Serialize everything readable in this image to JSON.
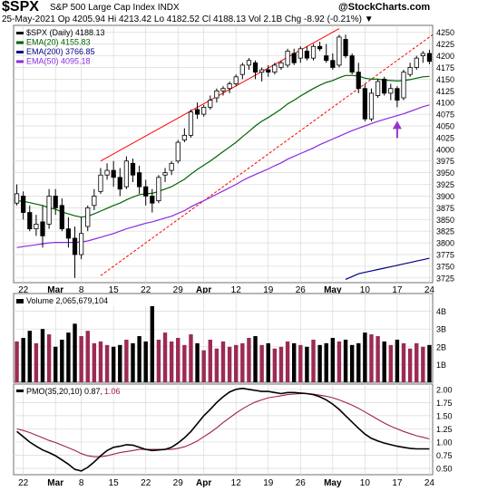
{
  "header": {
    "symbol": "$SPX",
    "description": "S&P 500 Large Cap Index  INDX",
    "logo": "@StockCharts.com",
    "quote": "25-May-2021  Op 4205.94  Hi 4213.42  Lo 4182.52  Cl 4188.13  Vol 2.1B  Chg -8.92 (-0.21%) ▼"
  },
  "colors": {
    "price_up": "#000000",
    "price_down": "#000000",
    "ema20": "#006400",
    "ema50": "#8a2be2",
    "ema200": "#000080",
    "trendline": "#ff0000",
    "volume_up": "#9c2a55",
    "volume_down": "#000000",
    "pmo": "#000000",
    "pmo_signal": "#a0204a",
    "arrow": "#9932cc"
  },
  "chart_data": [
    {
      "type": "candlestick",
      "panel": "price",
      "legend": [
        {
          "label": "$SPX (Daily) 4188.13",
          "color": "#000000"
        },
        {
          "label": "EMA(20) 4155.83",
          "color": "#006400"
        },
        {
          "label": "EMA(200) 3766.85",
          "color": "#000080"
        },
        {
          "label": "EMA(50) 4095.18",
          "color": "#8a2be2"
        }
      ],
      "ylim": [
        3715,
        4265
      ],
      "y_ticks": [
        3725,
        3750,
        3775,
        3800,
        3825,
        3850,
        3875,
        3900,
        3925,
        3950,
        3975,
        4000,
        4025,
        4050,
        4075,
        4100,
        4125,
        4150,
        4175,
        4200,
        4225,
        4250
      ],
      "x_tick_labels": [
        "22",
        "Mar",
        "8",
        "15",
        "22",
        "29",
        "Apr",
        "12",
        "19",
        "26",
        "May",
        "10",
        "17",
        "24"
      ],
      "x_tick_index": [
        1,
        6,
        10,
        15,
        20,
        25,
        29,
        34,
        39,
        44,
        49,
        54,
        59,
        64
      ],
      "ohlc": [
        [
          3885,
          3925,
          3880,
          3905
        ],
        [
          3900,
          3910,
          3850,
          3865
        ],
        [
          3865,
          3880,
          3825,
          3830
        ],
        [
          3830,
          3860,
          3815,
          3840
        ],
        [
          3845,
          3880,
          3790,
          3815
        ],
        [
          3840,
          3915,
          3830,
          3900
        ],
        [
          3900,
          3915,
          3860,
          3875
        ],
        [
          3880,
          3895,
          3825,
          3830
        ],
        [
          3830,
          3855,
          3790,
          3810
        ],
        [
          3810,
          3835,
          3725,
          3775
        ],
        [
          3775,
          3855,
          3765,
          3820
        ],
        [
          3835,
          3880,
          3825,
          3875
        ],
        [
          3880,
          3915,
          3870,
          3900
        ],
        [
          3910,
          3960,
          3905,
          3945
        ],
        [
          3945,
          3970,
          3935,
          3955
        ],
        [
          3955,
          3975,
          3920,
          3940
        ],
        [
          3940,
          3960,
          3900,
          3915
        ],
        [
          3920,
          3985,
          3915,
          3975
        ],
        [
          3970,
          3980,
          3930,
          3945
        ],
        [
          3950,
          3965,
          3905,
          3920
        ],
        [
          3920,
          3935,
          3880,
          3900
        ],
        [
          3900,
          3915,
          3865,
          3885
        ],
        [
          3890,
          3945,
          3885,
          3940
        ],
        [
          3945,
          3960,
          3930,
          3950
        ],
        [
          3955,
          3975,
          3945,
          3970
        ],
        [
          3975,
          4020,
          3970,
          4015
        ],
        [
          4020,
          4045,
          4015,
          4030
        ],
        [
          4030,
          4085,
          4025,
          4080
        ],
        [
          4085,
          4100,
          4065,
          4075
        ],
        [
          4075,
          4095,
          4070,
          4090
        ],
        [
          4090,
          4115,
          4085,
          4105
        ],
        [
          4110,
          4130,
          4100,
          4125
        ],
        [
          4125,
          4135,
          4115,
          4130
        ],
        [
          4130,
          4145,
          4120,
          4140
        ],
        [
          4140,
          4160,
          4135,
          4155
        ],
        [
          4160,
          4185,
          4150,
          4180
        ],
        [
          4180,
          4195,
          4170,
          4190
        ],
        [
          4185,
          4190,
          4150,
          4165
        ],
        [
          4165,
          4175,
          4145,
          4170
        ],
        [
          4170,
          4180,
          4155,
          4165
        ],
        [
          4165,
          4185,
          4160,
          4180
        ],
        [
          4175,
          4190,
          4170,
          4185
        ],
        [
          4180,
          4215,
          4175,
          4210
        ],
        [
          4205,
          4215,
          4180,
          4185
        ],
        [
          4195,
          4220,
          4185,
          4215
        ],
        [
          4210,
          4220,
          4190,
          4195
        ],
        [
          4195,
          4225,
          4190,
          4220
        ],
        [
          4220,
          4230,
          4210,
          4215
        ],
        [
          4200,
          4225,
          4185,
          4190
        ],
        [
          4190,
          4205,
          4170,
          4175
        ],
        [
          4180,
          4245,
          4175,
          4240
        ],
        [
          4235,
          4245,
          4195,
          4200
        ],
        [
          4200,
          4205,
          4160,
          4165
        ],
        [
          4165,
          4185,
          4120,
          4130
        ],
        [
          4130,
          4140,
          4060,
          4065
        ],
        [
          4065,
          4130,
          4060,
          4120
        ],
        [
          4115,
          4150,
          4110,
          4145
        ],
        [
          4150,
          4155,
          4115,
          4120
        ],
        [
          4120,
          4140,
          4105,
          4130
        ],
        [
          4130,
          4135,
          4090,
          4105
        ],
        [
          4110,
          4170,
          4105,
          4165
        ],
        [
          4160,
          4185,
          4155,
          4175
        ],
        [
          4175,
          4200,
          4170,
          4195
        ],
        [
          4200,
          4210,
          4185,
          4205
        ],
        [
          4205,
          4213,
          4182,
          4188
        ]
      ],
      "ema20": [
        3890,
        3889,
        3886,
        3883,
        3880,
        3875,
        3872,
        3866,
        3862,
        3858,
        3855,
        3857,
        3862,
        3868,
        3874,
        3880,
        3885,
        3892,
        3898,
        3903,
        3905,
        3906,
        3910,
        3915,
        3920,
        3928,
        3936,
        3947,
        3957,
        3966,
        3975,
        3985,
        3995,
        4005,
        4015,
        4027,
        4038,
        4050,
        4060,
        4068,
        4077,
        4086,
        4097,
        4105,
        4114,
        4122,
        4130,
        4137,
        4143,
        4147,
        4153,
        4158,
        4158,
        4157,
        4152,
        4150,
        4150,
        4148,
        4147,
        4146,
        4147,
        4149,
        4152,
        4155,
        4156
      ],
      "ema50": [
        3790,
        3792,
        3794,
        3796,
        3798,
        3800,
        3801,
        3801,
        3801,
        3801,
        3802,
        3804,
        3808,
        3812,
        3816,
        3820,
        3825,
        3830,
        3834,
        3838,
        3842,
        3845,
        3849,
        3853,
        3857,
        3863,
        3869,
        3877,
        3884,
        3890,
        3897,
        3904,
        3911,
        3918,
        3925,
        3933,
        3940,
        3946,
        3952,
        3958,
        3965,
        3971,
        3979,
        3985,
        3991,
        3997,
        4003,
        4010,
        4016,
        4022,
        4028,
        4034,
        4040,
        4045,
        4050,
        4055,
        4060,
        4064,
        4068,
        4072,
        4076,
        4081,
        4086,
        4091,
        4095
      ],
      "ema200": [
        null,
        null,
        null,
        null,
        null,
        null,
        null,
        null,
        null,
        null,
        null,
        null,
        null,
        null,
        null,
        null,
        null,
        null,
        null,
        null,
        null,
        null,
        null,
        null,
        null,
        null,
        null,
        null,
        null,
        null,
        null,
        null,
        null,
        null,
        null,
        null,
        null,
        null,
        null,
        null,
        null,
        null,
        null,
        null,
        null,
        null,
        null,
        null,
        null,
        null,
        null,
        3722,
        3728,
        3734,
        3737,
        3740,
        3743,
        3746,
        3749,
        3752,
        3755,
        3758,
        3761,
        3764,
        3767
      ],
      "trendlines": [
        {
          "style": "solid",
          "start": [
            13,
            3975
          ],
          "end": [
            50,
            4258
          ]
        },
        {
          "style": "dashed",
          "start": [
            13,
            3730
          ],
          "end": [
            65,
            4250
          ]
        }
      ],
      "annotations": [
        {
          "type": "arrow-up",
          "index": 59,
          "value": 4055
        }
      ]
    },
    {
      "type": "bar",
      "panel": "volume",
      "legend": "Volume 2,065,679,104",
      "ylim": [
        0,
        5
      ],
      "y_ticks": [
        {
          "v": 1,
          "label": "1B"
        },
        {
          "v": 2,
          "label": "2B"
        },
        {
          "v": 3,
          "label": "3B"
        },
        {
          "v": 4,
          "label": "4B"
        }
      ],
      "values": [
        2.3,
        2.5,
        2.9,
        2.2,
        3.0,
        2.7,
        2.0,
        2.4,
        2.8,
        3.3,
        2.6,
        2.9,
        2.2,
        2.3,
        2.1,
        2.0,
        2.1,
        2.4,
        2.2,
        2.6,
        2.3,
        4.3,
        2.4,
        2.8,
        2.3,
        2.5,
        2.1,
        2.7,
        2.2,
        1.8,
        2.4,
        1.9,
        2.3,
        2.0,
        2.1,
        2.2,
        2.5,
        2.6,
        2.1,
        2.2,
        1.9,
        2.0,
        2.3,
        2.2,
        2.1,
        2.0,
        2.4,
        2.1,
        2.2,
        2.5,
        2.3,
        2.4,
        2.1,
        2.2,
        2.8,
        2.7,
        2.6,
        2.3,
        2.1,
        2.4,
        2.2,
        1.9,
        2.2,
        2.0,
        2.1
      ]
    },
    {
      "type": "line",
      "panel": "pmo",
      "legend": [
        {
          "label": "PMO(35,20,10) 0.87, ",
          "color": "#000000"
        },
        {
          "label": "1.06",
          "color": "#a0204a"
        }
      ],
      "ylim": [
        0.38,
        2.1
      ],
      "y_ticks": [
        {
          "v": 0.5,
          "label": "0.50"
        },
        {
          "v": 0.75,
          "label": "0.75"
        },
        {
          "v": 1.0,
          "label": "1.00"
        },
        {
          "v": 1.25,
          "label": "1.25"
        },
        {
          "v": 1.5,
          "label": "1.50"
        },
        {
          "v": 1.75,
          "label": "1.75"
        },
        {
          "v": 2.0,
          "label": "2.00"
        }
      ],
      "series": [
        {
          "name": "PMO",
          "values": [
            1.2,
            1.1,
            1.0,
            0.92,
            0.85,
            0.8,
            0.74,
            0.66,
            0.58,
            0.48,
            0.45,
            0.52,
            0.62,
            0.74,
            0.84,
            0.9,
            0.92,
            0.95,
            0.94,
            0.9,
            0.86,
            0.84,
            0.85,
            0.86,
            0.9,
            0.98,
            1.08,
            1.2,
            1.35,
            1.5,
            1.62,
            1.75,
            1.86,
            1.95,
            2.0,
            2.02,
            2.0,
            1.98,
            1.96,
            1.96,
            1.94,
            1.92,
            1.94,
            1.94,
            1.93,
            1.92,
            1.9,
            1.86,
            1.8,
            1.72,
            1.62,
            1.5,
            1.38,
            1.26,
            1.15,
            1.07,
            1.02,
            0.98,
            0.95,
            0.92,
            0.9,
            0.88,
            0.87,
            0.87,
            0.87
          ]
        },
        {
          "name": "Signal",
          "values": [
            1.25,
            1.22,
            1.18,
            1.13,
            1.08,
            1.03,
            0.99,
            0.94,
            0.89,
            0.84,
            0.78,
            0.74,
            0.72,
            0.72,
            0.74,
            0.77,
            0.8,
            0.82,
            0.84,
            0.86,
            0.86,
            0.86,
            0.86,
            0.86,
            0.86,
            0.88,
            0.91,
            0.96,
            1.02,
            1.1,
            1.18,
            1.27,
            1.37,
            1.46,
            1.55,
            1.63,
            1.7,
            1.76,
            1.8,
            1.84,
            1.86,
            1.88,
            1.9,
            1.91,
            1.92,
            1.92,
            1.91,
            1.89,
            1.87,
            1.84,
            1.8,
            1.75,
            1.7,
            1.64,
            1.57,
            1.5,
            1.43,
            1.36,
            1.3,
            1.25,
            1.2,
            1.16,
            1.12,
            1.09,
            1.06
          ]
        }
      ]
    }
  ]
}
